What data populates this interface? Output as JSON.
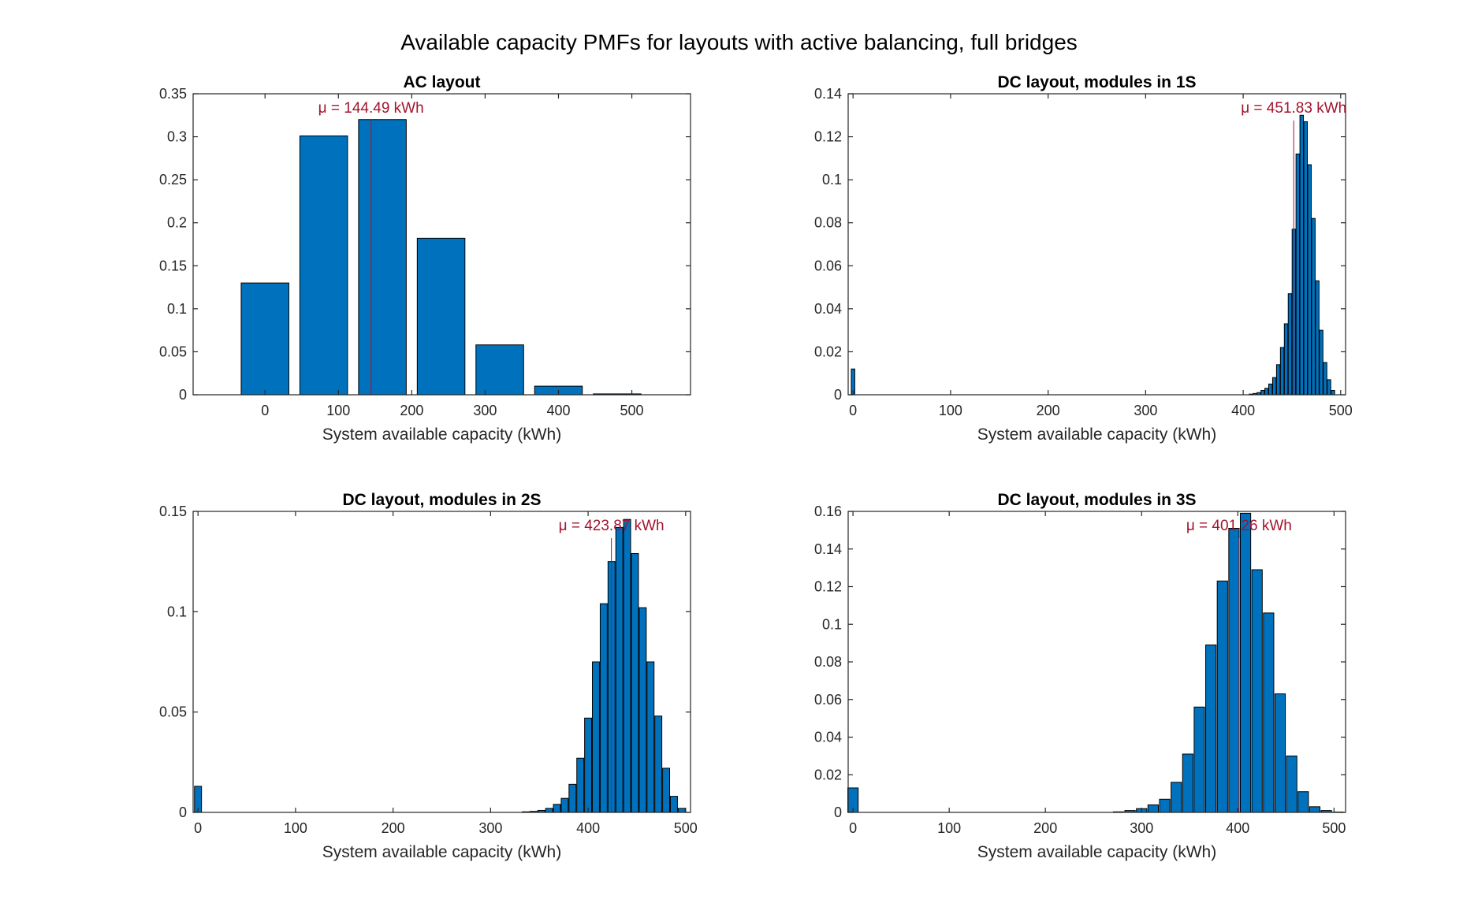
{
  "figure": {
    "title": "Available capacity PMFs for layouts with active balancing, full bridges"
  },
  "colors": {
    "bar": "#0072bd",
    "mean_line": "#a2142f",
    "axis": "#262626"
  },
  "chart_data": [
    {
      "type": "bar",
      "title": "AC layout",
      "xlabel": "System available capacity (kWh)",
      "ylabel": "",
      "xlim": [
        -98,
        580
      ],
      "ylim": [
        0,
        0.35
      ],
      "xticks": [
        0,
        100,
        200,
        300,
        400,
        500
      ],
      "yticks": [
        "0",
        "0.05",
        "0.1",
        "0.15",
        "0.2",
        "0.25",
        "0.3",
        "0.35"
      ],
      "bar_width": 65,
      "x": [
        0,
        80,
        160,
        240,
        320,
        400,
        480
      ],
      "values": [
        0.13,
        0.301,
        0.32,
        0.182,
        0.058,
        0.01,
        0.001
      ],
      "mean": 144.49,
      "mean_label": "μ = 144.49 kWh"
    },
    {
      "type": "bar",
      "title": "DC layout, modules in 1S",
      "xlabel": "System available capacity (kWh)",
      "ylabel": "",
      "xlim": [
        -5,
        505
      ],
      "ylim": [
        0,
        0.14
      ],
      "xticks": [
        0,
        100,
        200,
        300,
        400,
        500
      ],
      "yticks": [
        "0",
        "0.02",
        "0.04",
        "0.06",
        "0.08",
        "0.1",
        "0.12",
        "0.14"
      ],
      "bar_width": 3.6,
      "x": [
        0,
        408,
        412,
        416,
        420,
        424,
        428,
        432,
        436,
        440,
        444,
        448,
        452,
        456,
        460,
        464,
        468,
        472,
        476,
        480,
        484,
        488,
        492
      ],
      "values": [
        0.012,
        0.0003,
        0.0006,
        0.001,
        0.002,
        0.003,
        0.005,
        0.008,
        0.014,
        0.022,
        0.033,
        0.047,
        0.077,
        0.112,
        0.13,
        0.127,
        0.107,
        0.082,
        0.053,
        0.03,
        0.015,
        0.007,
        0.002
      ],
      "mean": 451.83,
      "mean_label": "μ = 451.83 kWh"
    },
    {
      "type": "bar",
      "title": "DC layout, modules in 2S",
      "xlabel": "System available capacity (kWh)",
      "ylabel": "",
      "xlim": [
        -5,
        505
      ],
      "ylim": [
        0,
        0.15
      ],
      "xticks": [
        0,
        100,
        200,
        300,
        400,
        500
      ],
      "yticks": [
        "0",
        "0.05",
        "0.1",
        "0.15"
      ],
      "bar_width": 7.2,
      "x": [
        0,
        336,
        344,
        352,
        360,
        368,
        376,
        384,
        392,
        400,
        408,
        416,
        424,
        432,
        440,
        448,
        456,
        464,
        472,
        480,
        488,
        496
      ],
      "values": [
        0.013,
        0.0003,
        0.0005,
        0.001,
        0.002,
        0.004,
        0.007,
        0.014,
        0.027,
        0.047,
        0.075,
        0.104,
        0.125,
        0.142,
        0.146,
        0.129,
        0.102,
        0.075,
        0.048,
        0.022,
        0.008,
        0.002
      ],
      "mean": 423.87,
      "mean_label": "μ = 423.87 kWh"
    },
    {
      "type": "bar",
      "title": "DC layout, modules in 3S",
      "xlabel": "System available capacity (kWh)",
      "ylabel": "",
      "xlim": [
        -5,
        512
      ],
      "ylim": [
        0,
        0.16
      ],
      "xticks": [
        0,
        100,
        200,
        300,
        400,
        500
      ],
      "yticks": [
        "0",
        "0.02",
        "0.04",
        "0.06",
        "0.08",
        "0.1",
        "0.12",
        "0.14",
        "0.16"
      ],
      "bar_width": 10.8,
      "x": [
        0,
        276,
        288,
        300,
        312,
        324,
        336,
        348,
        360,
        372,
        384,
        396,
        408,
        420,
        432,
        444,
        456,
        468,
        480,
        492,
        504
      ],
      "values": [
        0.013,
        0.0003,
        0.001,
        0.002,
        0.004,
        0.007,
        0.016,
        0.031,
        0.056,
        0.089,
        0.123,
        0.151,
        0.159,
        0.129,
        0.106,
        0.063,
        0.03,
        0.011,
        0.003,
        0.001,
        0.0002
      ],
      "mean": 401.26,
      "mean_label": "μ = 401.26 kWh"
    }
  ]
}
